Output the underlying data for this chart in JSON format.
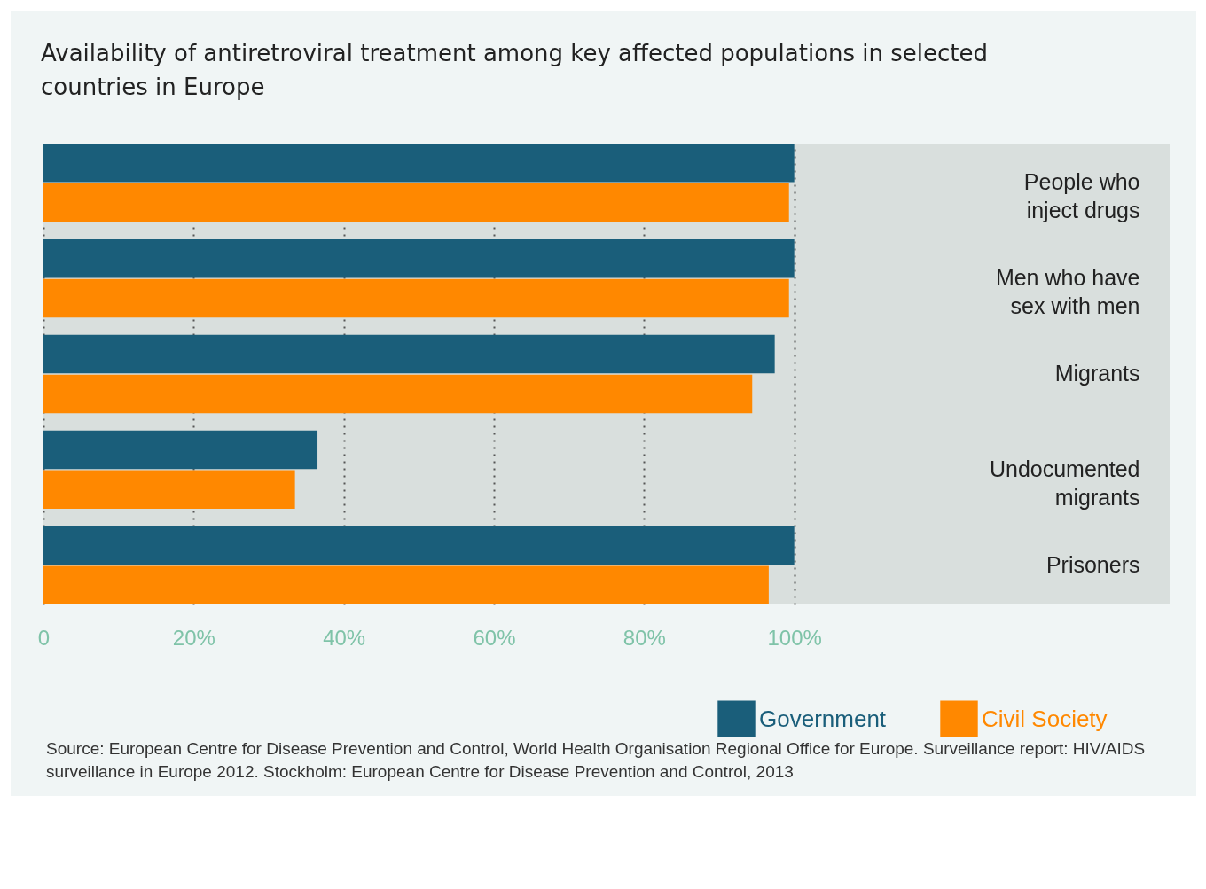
{
  "chart_data": {
    "type": "bar",
    "orientation": "horizontal",
    "title": "Availability of antiretroviral treatment among key affected populations in selected countries in Europe",
    "categories": [
      "People who inject drugs",
      "Men who have sex with men",
      "Migrants",
      "Undocumented migrants",
      "Prisoners"
    ],
    "series": [
      {
        "name": "Government",
        "color": "#1a5e7a",
        "values": [
          100,
          100,
          97.4,
          36.5,
          100
        ]
      },
      {
        "name": "Civil Society",
        "color": "#ff8800",
        "values": [
          99.3,
          99.3,
          94.4,
          33.5,
          96.6
        ]
      }
    ],
    "xlim": [
      0,
      150
    ],
    "xticks": [
      0,
      {
        "value": 20,
        "label": "20%"
      },
      {
        "value": 40,
        "label": "40%"
      },
      {
        "value": 60,
        "label": "60%"
      },
      {
        "value": 80,
        "label": "80%"
      },
      {
        "value": 100,
        "label": "100%"
      }
    ],
    "grid": "x",
    "legend": "bottom right",
    "annotations": [
      "Source: European Centre for Disease Prevention and Control, World Health Organisation Regional Office for Europe. Surveillance report: HIV/AIDS surveillance in Europe 2012. Stockholm: European Centre for Disease Prevention and Control, 2013"
    ]
  }
}
